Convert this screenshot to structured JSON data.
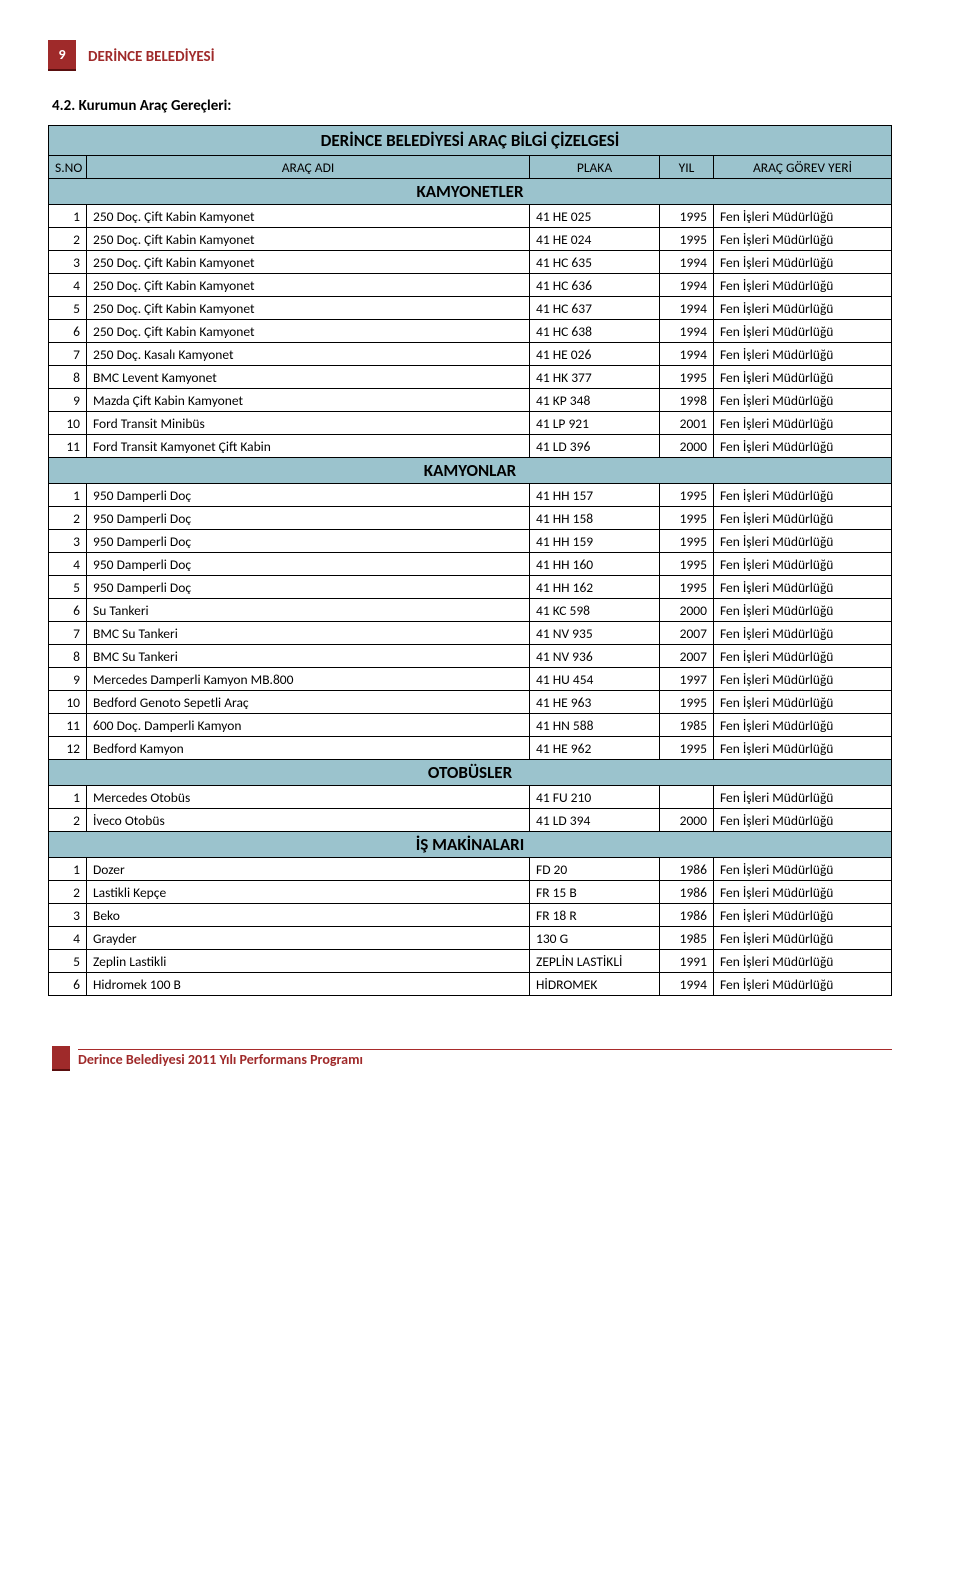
{
  "colors": {
    "accent": "#9f2a2a",
    "badge_bg": "#9f2a2a",
    "section_bg": "#9bc3cd",
    "border": "#000000",
    "background": "#ffffff"
  },
  "page_number": "9",
  "org_name": "DERİNCE BELEDİYESİ",
  "section_heading": "4.2. Kurumun Araç Gereçleri:",
  "table_title": "DERİNCE BELEDİYESİ ARAÇ BİLGİ ÇİZELGESİ",
  "columns": {
    "sn": "S.NO",
    "name": "ARAÇ ADI",
    "plate": "PLAKA",
    "year": "YIL",
    "duty": "ARAÇ GÖREV YERİ"
  },
  "groups": [
    {
      "label": "KAMYONETLER",
      "rows": [
        {
          "n": "1",
          "name": "250 Doç. Çift Kabin Kamyonet",
          "plate": "41 HE 025",
          "year": "1995",
          "duty": "Fen İşleri Müdürlüğü"
        },
        {
          "n": "2",
          "name": "250 Doç. Çift Kabin Kamyonet",
          "plate": "41 HE 024",
          "year": "1995",
          "duty": "Fen İşleri Müdürlüğü"
        },
        {
          "n": "3",
          "name": "250 Doç. Çift Kabin Kamyonet",
          "plate": "41 HC 635",
          "year": "1994",
          "duty": "Fen İşleri Müdürlüğü"
        },
        {
          "n": "4",
          "name": "250 Doç. Çift Kabin Kamyonet",
          "plate": "41 HC 636",
          "year": "1994",
          "duty": "Fen İşleri Müdürlüğü"
        },
        {
          "n": "5",
          "name": "250 Doç. Çift Kabin Kamyonet",
          "plate": "41 HC 637",
          "year": "1994",
          "duty": "Fen İşleri Müdürlüğü"
        },
        {
          "n": "6",
          "name": "250 Doç. Çift Kabin Kamyonet",
          "plate": "41 HC 638",
          "year": "1994",
          "duty": "Fen İşleri Müdürlüğü"
        },
        {
          "n": "7",
          "name": "250 Doç. Kasalı Kamyonet",
          "plate": "41 HE 026",
          "year": "1994",
          "duty": "Fen İşleri Müdürlüğü"
        },
        {
          "n": "8",
          "name": "BMC Levent Kamyonet",
          "plate": "41 HK 377",
          "year": "1995",
          "duty": "Fen İşleri Müdürlüğü"
        },
        {
          "n": "9",
          "name": "Mazda Çift Kabin Kamyonet",
          "plate": "41 KP 348",
          "year": "1998",
          "duty": "Fen İşleri Müdürlüğü"
        },
        {
          "n": "10",
          "name": "Ford Transit Minibüs",
          "plate": "41 LP 921",
          "year": "2001",
          "duty": "Fen İşleri Müdürlüğü"
        },
        {
          "n": "11",
          "name": "Ford Transit Kamyonet Çift Kabin",
          "plate": "41 LD 396",
          "year": "2000",
          "duty": "Fen İşleri Müdürlüğü"
        }
      ]
    },
    {
      "label": "KAMYONLAR",
      "rows": [
        {
          "n": "1",
          "name": "950 Damperli Doç",
          "plate": "41 HH 157",
          "year": "1995",
          "duty": "Fen İşleri Müdürlüğü"
        },
        {
          "n": "2",
          "name": "950 Damperli Doç",
          "plate": "41 HH 158",
          "year": "1995",
          "duty": "Fen İşleri Müdürlüğü"
        },
        {
          "n": "3",
          "name": "950 Damperli Doç",
          "plate": "41 HH 159",
          "year": "1995",
          "duty": "Fen İşleri Müdürlüğü"
        },
        {
          "n": "4",
          "name": "950 Damperli Doç",
          "plate": "41 HH 160",
          "year": "1995",
          "duty": "Fen İşleri Müdürlüğü"
        },
        {
          "n": "5",
          "name": "950 Damperli Doç",
          "plate": "41 HH 162",
          "year": "1995",
          "duty": "Fen İşleri Müdürlüğü"
        },
        {
          "n": "6",
          "name": "Su Tankeri",
          "plate": "41 KC 598",
          "year": "2000",
          "duty": "Fen İşleri Müdürlüğü"
        },
        {
          "n": "7",
          "name": "BMC Su Tankeri",
          "plate": "41 NV 935",
          "year": "2007",
          "duty": "Fen İşleri Müdürlüğü"
        },
        {
          "n": "8",
          "name": "BMC Su Tankeri",
          "plate": "41 NV 936",
          "year": "2007",
          "duty": "Fen İşleri Müdürlüğü"
        },
        {
          "n": "9",
          "name": "Mercedes Damperli Kamyon MB.800",
          "plate": "41 HU 454",
          "year": "1997",
          "duty": "Fen İşleri Müdürlüğü"
        },
        {
          "n": "10",
          "name": "Bedford Genoto Sepetli Araç",
          "plate": "41 HE 963",
          "year": "1995",
          "duty": "Fen İşleri Müdürlüğü"
        },
        {
          "n": "11",
          "name": "600 Doç. Damperli Kamyon",
          "plate": "41 HN 588",
          "year": "1985",
          "duty": "Fen İşleri Müdürlüğü"
        },
        {
          "n": "12",
          "name": "Bedford Kamyon",
          "plate": "41 HE 962",
          "year": "1995",
          "duty": "Fen İşleri Müdürlüğü"
        }
      ]
    },
    {
      "label": "OTOBÜSLER",
      "rows": [
        {
          "n": "1",
          "name": "Mercedes Otobüs",
          "plate": "41 FU 210",
          "year": "",
          "duty": "Fen İşleri Müdürlüğü"
        },
        {
          "n": "2",
          "name": "İveco Otobüs",
          "plate": "41 LD 394",
          "year": "2000",
          "duty": "Fen İşleri Müdürlüğü"
        }
      ]
    },
    {
      "label": "İŞ MAKİNALARI",
      "rows": [
        {
          "n": "1",
          "name": "Dozer",
          "plate": "FD 20",
          "year": "1986",
          "duty": "Fen İşleri Müdürlüğü"
        },
        {
          "n": "2",
          "name": "Lastikli Kepçe",
          "plate": "FR 15 B",
          "year": "1986",
          "duty": "Fen İşleri Müdürlüğü"
        },
        {
          "n": "3",
          "name": "Beko",
          "plate": "FR 18 R",
          "year": "1986",
          "duty": "Fen İşleri Müdürlüğü"
        },
        {
          "n": "4",
          "name": "Grayder",
          "plate": "130 G",
          "year": "1985",
          "duty": "Fen İşleri Müdürlüğü"
        },
        {
          "n": "5",
          "name": "Zeplin Lastikli",
          "plate": "ZEPLİN LASTİKLİ",
          "year": "1991",
          "duty": "Fen İşleri Müdürlüğü"
        },
        {
          "n": "6",
          "name": "Hidromek 100 B",
          "plate": "HİDROMEK",
          "year": "1994",
          "duty": "Fen İşleri Müdürlüğü"
        }
      ]
    }
  ],
  "footer_text": "Derince Belediyesi 2011 Yılı Performans Programı"
}
